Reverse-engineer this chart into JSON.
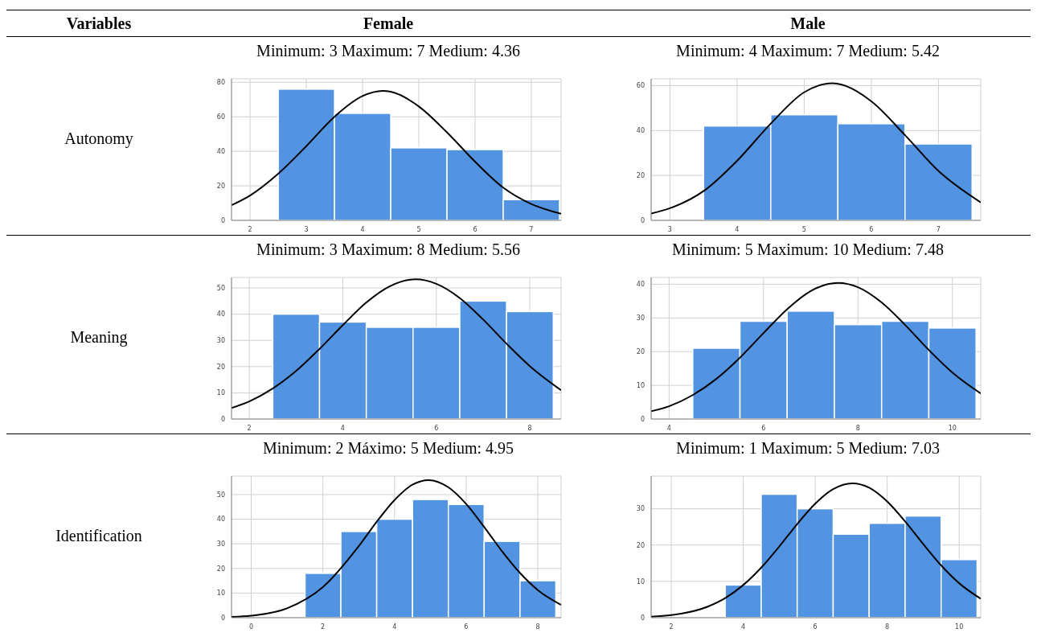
{
  "chart_data": [
    {
      "type": "histogram",
      "title": "Minimum: 3 Maximum: 7 Medium: 4.36",
      "annotations": [
        "Variables",
        "Female",
        "Autonomy"
      ],
      "bins": [
        2.5,
        3.5,
        4.5,
        5.5,
        6.5,
        7.5
      ],
      "values": [
        76,
        62,
        42,
        41,
        12
      ],
      "color": "#5294e2",
      "xlim": [
        1.67,
        7.53
      ],
      "xticks": [
        2,
        3,
        4,
        5,
        6,
        7
      ],
      "ylim": [
        0,
        82
      ],
      "yticks": [
        0,
        20,
        40,
        60,
        80
      ],
      "grid": true,
      "series": [
        {
          "type": "line",
          "color": "#000000",
          "x": [
            1.67,
            2,
            2.5,
            3,
            3.5,
            4,
            4.36,
            4.5,
            5,
            5.5,
            6,
            6.5,
            7,
            7.53
          ],
          "values": [
            8.8,
            14.4,
            27,
            43,
            60,
            72,
            75,
            74.5,
            66,
            51,
            34,
            19,
            9.5,
            3.8
          ]
        }
      ]
    },
    {
      "type": "histogram",
      "title": "Minimum: 4 Maximum: 7 Medium: 5.42",
      "annotations": [
        "Male"
      ],
      "bins": [
        3.5,
        4.5,
        5.5,
        6.5,
        7.5
      ],
      "values": [
        42,
        47,
        43,
        34
      ],
      "color": "#5294e2",
      "xlim": [
        2.72,
        7.63
      ],
      "xticks": [
        3,
        4,
        5,
        6,
        7
      ],
      "ylim": [
        0,
        63
      ],
      "yticks": [
        0,
        20,
        40,
        60
      ],
      "grid": true,
      "series": [
        {
          "type": "line",
          "color": "#000000",
          "x": [
            2.72,
            3,
            3.5,
            4,
            4.5,
            5,
            5.42,
            6,
            6.5,
            7,
            7.63
          ],
          "values": [
            3,
            5.4,
            13,
            26.5,
            43,
            57,
            61,
            53,
            38,
            22,
            8
          ]
        }
      ]
    },
    {
      "type": "histogram",
      "title": "Minimum: 3 Maximum: 8 Medium: 5.56",
      "annotations": [
        "Meaning"
      ],
      "bins": [
        2.5,
        3.5,
        4.5,
        5.5,
        6.5,
        7.5,
        8.5
      ],
      "values": [
        40,
        37,
        35,
        35,
        45,
        41
      ],
      "color": "#5294e2",
      "xlim": [
        1.62,
        8.67
      ],
      "xticks": [
        2,
        4,
        6,
        8
      ],
      "ylim": [
        0,
        54
      ],
      "yticks": [
        0,
        10,
        20,
        30,
        40,
        50
      ],
      "grid": true,
      "series": [
        {
          "type": "line",
          "color": "#000000",
          "x": [
            1.62,
            2,
            2.5,
            3,
            3.5,
            4,
            4.5,
            5,
            5.56,
            6,
            6.5,
            7,
            7.5,
            8,
            8.67
          ],
          "values": [
            4.2,
            6.7,
            11.6,
            18.3,
            26.7,
            35.8,
            44.4,
            50.6,
            53.3,
            51.6,
            46.2,
            38,
            28.8,
            20.2,
            11
          ]
        }
      ]
    },
    {
      "type": "histogram",
      "title": "Minimum: 5 Maximum: 10 Medium: 7.48",
      "bins": [
        4.5,
        5.5,
        6.5,
        7.5,
        8.5,
        9.5,
        10.5
      ],
      "values": [
        21,
        29,
        32,
        28,
        29,
        27
      ],
      "color": "#5294e2",
      "xlim": [
        3.62,
        10.6
      ],
      "xticks": [
        4,
        6,
        8,
        10
      ],
      "ylim": [
        0,
        42
      ],
      "yticks": [
        0,
        10,
        20,
        30,
        40
      ],
      "grid": true,
      "series": [
        {
          "type": "line",
          "color": "#000000",
          "x": [
            3.62,
            4,
            4.5,
            5,
            5.5,
            6,
            6.5,
            7,
            7.58,
            8,
            8.5,
            9,
            9.5,
            10,
            10.6
          ],
          "values": [
            2.3,
            3.8,
            7.1,
            11.9,
            18.2,
            25.5,
            32.6,
            38,
            40.4,
            39.1,
            34.6,
            27.9,
            20.5,
            13.8,
            7.6
          ]
        }
      ]
    },
    {
      "type": "histogram",
      "title": "Minimum: 2 Máximo: 5 Medium: 4.95",
      "annotations": [
        "Identification"
      ],
      "bins": [
        1.5,
        2.5,
        3.5,
        4.5,
        5.5,
        6.5,
        7.5,
        8.5
      ],
      "values": [
        18,
        35,
        40,
        48,
        46,
        31,
        15
      ],
      "color": "#5294e2",
      "xlim": [
        -0.55,
        8.65
      ],
      "xticks": [
        0,
        2,
        4,
        6,
        8
      ],
      "ylim": [
        0,
        57.5
      ],
      "yticks": [
        0,
        10,
        20,
        30,
        40,
        50
      ],
      "grid": true,
      "series": [
        {
          "type": "line",
          "color": "#000000",
          "x": [
            -0.55,
            0,
            1,
            2,
            3,
            3.5,
            4,
            4.5,
            4.95,
            5.5,
            6,
            6.5,
            7,
            7.5,
            8,
            8.65
          ],
          "values": [
            0.3,
            0.8,
            3.8,
            12.4,
            29,
            38.9,
            47.8,
            54,
            55.9,
            53,
            46.2,
            36.9,
            27,
            18.2,
            11.2,
            5.2
          ]
        }
      ]
    },
    {
      "type": "histogram",
      "title": "Minimum: 1 Maximum: 5 Medium: 7.03",
      "bins": [
        3.5,
        4.5,
        5.5,
        6.5,
        7.5,
        8.5,
        9.5,
        10.5
      ],
      "values": [
        9,
        34,
        30,
        23,
        26,
        28,
        16
      ],
      "color": "#5294e2",
      "xlim": [
        1.44,
        10.6
      ],
      "xticks": [
        2,
        4,
        6,
        8,
        10
      ],
      "ylim": [
        0,
        39
      ],
      "yticks": [
        0,
        10,
        20,
        30
      ],
      "grid": true,
      "series": [
        {
          "type": "line",
          "color": "#000000",
          "x": [
            1.44,
            2,
            3,
            3.5,
            4,
            4.5,
            5,
            5.5,
            6,
            6.5,
            7.03,
            7.5,
            8,
            8.5,
            9,
            9.5,
            10,
            10.6
          ],
          "values": [
            0.3,
            0.7,
            3,
            5.4,
            9,
            13.8,
            19.6,
            25.8,
            31.4,
            35.4,
            37,
            35.8,
            32,
            26.5,
            20.3,
            14.4,
            9.5,
            5.2
          ]
        }
      ]
    }
  ]
}
